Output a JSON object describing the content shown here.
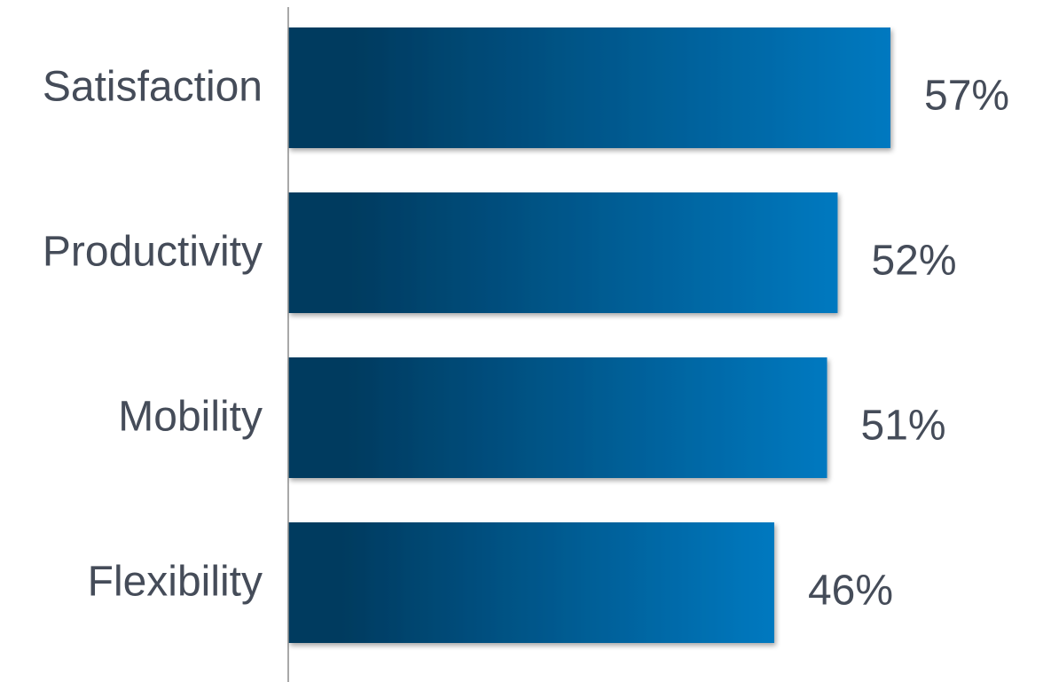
{
  "chart_data": {
    "type": "bar",
    "orientation": "horizontal",
    "categories": [
      "Satisfaction",
      "Productivity",
      "Mobility",
      "Flexibility"
    ],
    "values": [
      57,
      52,
      51,
      46
    ],
    "value_labels": [
      "57%",
      "52%",
      "51%",
      "46%"
    ],
    "title": "",
    "xlabel": "",
    "ylabel": "",
    "xlim": [
      0,
      57
    ],
    "grid": false,
    "legend": "none",
    "colors": {
      "bar_gradient_start": "#023a5e",
      "bar_gradient_end": "#0179c0",
      "label_text": "#454c59",
      "axis_line": "#8c8c8c"
    }
  }
}
